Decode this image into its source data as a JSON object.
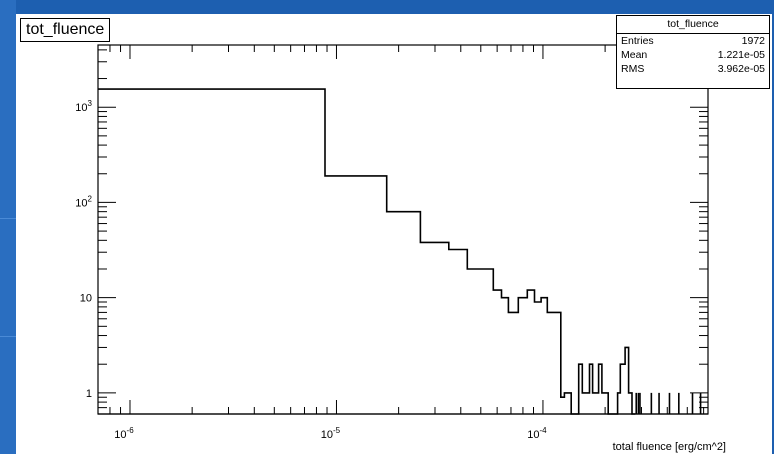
{
  "stats": {
    "name": "tot_fluence",
    "rows": [
      {
        "label": "Entries",
        "value": "1972"
      },
      {
        "label": "Mean",
        "value": "1.221e-05"
      },
      {
        "label": "RMS",
        "value": "3.962e-05"
      }
    ]
  },
  "colors": {
    "background": "#1d5fb0",
    "panel": "#ffffff",
    "line": "#000000"
  },
  "chart_data": {
    "type": "line",
    "style": "histogram-step",
    "title": "tot_fluence",
    "xlabel": "total fluence [erg/cm^2]",
    "ylabel": "",
    "x_scale": "log",
    "y_scale": "log",
    "xlim": [
      7e-07,
      0.00063
    ],
    "ylim": [
      0.6,
      4500
    ],
    "x_ticks": [
      {
        "value": 1e-06,
        "base": "10",
        "exp": "-6"
      },
      {
        "value": 1e-05,
        "base": "10",
        "exp": "-5"
      },
      {
        "value": 0.0001,
        "base": "10",
        "exp": "-4"
      }
    ],
    "y_ticks": [
      {
        "value": 1,
        "base": "1",
        "exp": ""
      },
      {
        "value": 10,
        "base": "10",
        "exp": ""
      },
      {
        "value": 100,
        "base": "10",
        "exp": "2"
      },
      {
        "value": 1000,
        "base": "10",
        "exp": "3"
      }
    ],
    "grid": false,
    "legend": "stats-box top-right",
    "series": [
      {
        "values": [
          {
            "x0": 7e-07,
            "x1": 8.8e-06,
            "y": 1550
          },
          {
            "x0": 8.8e-06,
            "x1": 1.75e-05,
            "y": 190
          },
          {
            "x0": 1.75e-05,
            "x1": 2.55e-05,
            "y": 80
          },
          {
            "x0": 2.55e-05,
            "x1": 3.5e-05,
            "y": 38
          },
          {
            "x0": 3.5e-05,
            "x1": 4.3e-05,
            "y": 32
          },
          {
            "x0": 4.3e-05,
            "x1": 5.75e-05,
            "y": 20
          },
          {
            "x0": 5.75e-05,
            "x1": 6.3e-05,
            "y": 12
          },
          {
            "x0": 6.3e-05,
            "x1": 6.8e-05,
            "y": 10
          },
          {
            "x0": 6.8e-05,
            "x1": 7.6e-05,
            "y": 7
          },
          {
            "x0": 7.6e-05,
            "x1": 8.4e-05,
            "y": 10
          },
          {
            "x0": 8.4e-05,
            "x1": 9.1e-05,
            "y": 12
          },
          {
            "x0": 9.1e-05,
            "x1": 9.8e-05,
            "y": 9
          },
          {
            "x0": 9.8e-05,
            "x1": 0.000105,
            "y": 10
          },
          {
            "x0": 0.000105,
            "x1": 0.000112,
            "y": 7
          },
          {
            "x0": 0.000112,
            "x1": 0.000122,
            "y": 7
          },
          {
            "x0": 0.000122,
            "x1": 0.000127,
            "y": 0.9
          },
          {
            "x0": 0.000127,
            "x1": 0.000137,
            "y": 1
          },
          {
            "x0": 0.000137,
            "x1": 0.000149,
            "y": 0.6
          },
          {
            "x0": 0.000149,
            "x1": 0.000155,
            "y": 2
          },
          {
            "x0": 0.000155,
            "x1": 0.000168,
            "y": 1
          },
          {
            "x0": 0.000168,
            "x1": 0.000174,
            "y": 2
          },
          {
            "x0": 0.000174,
            "x1": 0.000186,
            "y": 1
          },
          {
            "x0": 0.000186,
            "x1": 0.000193,
            "y": 2
          },
          {
            "x0": 0.000193,
            "x1": 0.000207,
            "y": 1
          },
          {
            "x0": 0.000207,
            "x1": 0.00023,
            "y": 0.6
          },
          {
            "x0": 0.00023,
            "x1": 0.000237,
            "y": 1
          },
          {
            "x0": 0.000237,
            "x1": 0.00025,
            "y": 2
          },
          {
            "x0": 0.00025,
            "x1": 0.00026,
            "y": 3
          },
          {
            "x0": 0.00026,
            "x1": 0.00027,
            "y": 1
          },
          {
            "x0": 0.00027,
            "x1": 0.00028,
            "y": 0.6
          }
        ],
        "spikes": [
          0.000283,
          0.00029,
          0.000295,
          0.000335,
          0.000365,
          0.00041,
          0.000455,
          0.00053,
          0.00058
        ]
      }
    ]
  }
}
